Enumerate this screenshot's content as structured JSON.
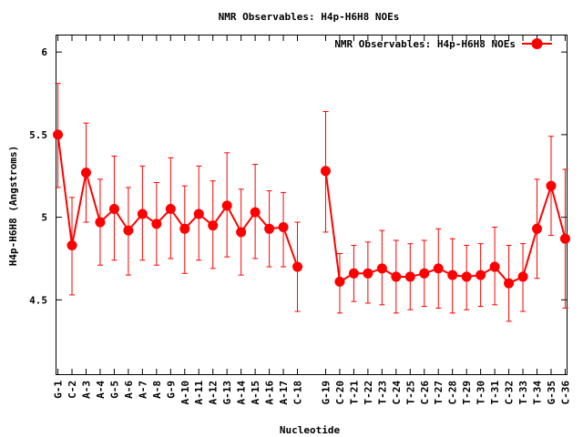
{
  "chart_data": {
    "type": "line",
    "title": "NMR Observables: H4p-H6H8 NOEs",
    "xlabel": "Nucleotide",
    "ylabel": "H4p-H6H8 (Angstroms)",
    "ylim": [
      4.05,
      6.1
    ],
    "yticks": [
      4.5,
      5,
      5.5,
      6
    ],
    "ytick_labels": [
      "4.5",
      "5",
      "5.5",
      "6"
    ],
    "grid": false,
    "legend_position": "top-right",
    "color": "#ff0000",
    "categories": [
      "G-1",
      "C-2",
      "A-3",
      "A-4",
      "G-5",
      "A-6",
      "A-7",
      "A-8",
      "G-9",
      "A-10",
      "A-11",
      "A-12",
      "G-13",
      "A-14",
      "A-15",
      "A-16",
      "A-17",
      "C-18",
      "G-19",
      "C-20",
      "T-21",
      "T-22",
      "T-23",
      "C-24",
      "T-25",
      "C-26",
      "T-27",
      "C-28",
      "T-29",
      "T-30",
      "T-31",
      "C-32",
      "T-33",
      "T-34",
      "G-35",
      "C-36"
    ],
    "positions": [
      1,
      2,
      3,
      4,
      5,
      6,
      7,
      8,
      9,
      10,
      11,
      12,
      13,
      14,
      15,
      16,
      17,
      18,
      20,
      21,
      22,
      23,
      24,
      25,
      26,
      27,
      28,
      29,
      30,
      31,
      32,
      33,
      34,
      35,
      36,
      37
    ],
    "xlim": [
      0.9,
      37.1
    ],
    "series": [
      {
        "name": "NMR Observables: H4p-H6H8 NOEs",
        "segments": [
          [
            0,
            17
          ],
          [
            18,
            35
          ]
        ],
        "values": [
          5.5,
          4.83,
          5.27,
          4.97,
          5.05,
          4.92,
          5.02,
          4.96,
          5.05,
          4.93,
          5.02,
          4.95,
          5.07,
          4.91,
          5.03,
          4.93,
          4.94,
          4.7,
          5.28,
          4.61,
          4.66,
          4.66,
          4.69,
          4.64,
          4.64,
          4.66,
          4.69,
          4.65,
          4.64,
          4.65,
          4.7,
          4.6,
          4.64,
          4.93,
          5.19,
          4.87
        ],
        "err_low": [
          5.18,
          4.53,
          4.97,
          4.71,
          4.74,
          4.65,
          4.74,
          4.71,
          4.75,
          4.66,
          4.74,
          4.69,
          4.76,
          4.65,
          4.75,
          4.7,
          4.7,
          4.43,
          4.91,
          4.42,
          4.49,
          4.48,
          4.47,
          4.42,
          4.44,
          4.46,
          4.45,
          4.42,
          4.44,
          4.46,
          4.47,
          4.37,
          4.43,
          4.63,
          4.89,
          4.45
        ],
        "err_high": [
          5.81,
          5.12,
          5.57,
          5.23,
          5.37,
          5.18,
          5.31,
          5.21,
          5.36,
          5.19,
          5.31,
          5.22,
          5.39,
          5.17,
          5.32,
          5.16,
          5.15,
          4.97,
          5.64,
          4.78,
          4.83,
          4.85,
          4.92,
          4.86,
          4.84,
          4.86,
          4.93,
          4.87,
          4.83,
          4.84,
          4.94,
          4.83,
          4.84,
          5.23,
          5.49,
          5.29
        ]
      }
    ]
  }
}
